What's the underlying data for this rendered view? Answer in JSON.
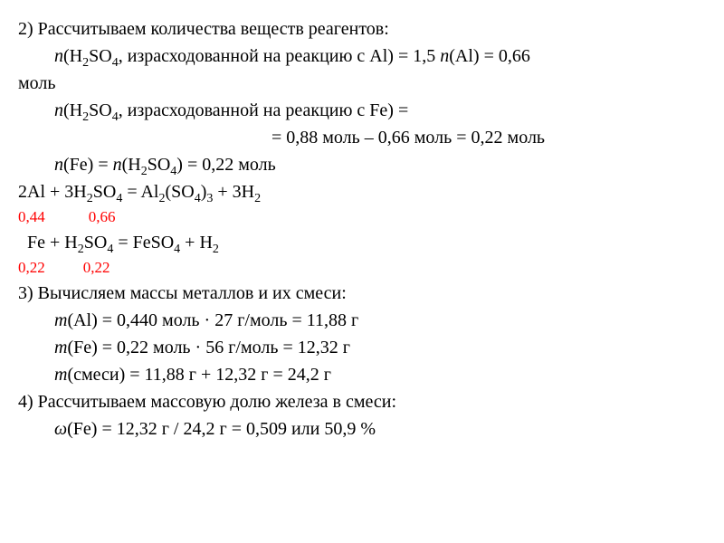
{
  "text_color": "#000000",
  "highlight_color": "#ff0000",
  "background": "#ffffff",
  "font_family": "Times New Roman",
  "base_font_size": 20,
  "highlight_font_size": 17,
  "step2": {
    "heading": "2) Рассчитываем количества веществ реагентов:",
    "line1_prefix": "n",
    "line1_a": "(H",
    "line1_b": "SO",
    "line1_c": ", израсходованной на реакцию с Al) = 1,5 ",
    "line1_n2": "n",
    "line1_d": "(Al) = 0,66",
    "line2": "моль",
    "line3_a": "(H",
    "line3_b": "SO",
    "line3_c": ", израсходованной на реакцию с Fe) =",
    "line4": "= 0,88 моль – 0,66 моль = 0,22 моль",
    "line5_a": "(Fe) = ",
    "line5_b": "(H",
    "line5_c": "SO",
    "line5_d": ") = 0,22 моль",
    "eq1_a": "2Al + 3H",
    "eq1_b": "SO",
    "eq1_c": " = Al",
    "eq1_d": "(SO",
    "eq1_e": ")",
    "eq1_f": " + 3H",
    "coef1_a": "0,44",
    "coef1_b": "0,66",
    "eq2_a": "  Fe + H",
    "eq2_b": "SO",
    "eq2_c": " = FeSO",
    "eq2_d": " + H",
    "coef2_a": "0,22",
    "coef2_b": "0,22"
  },
  "step3": {
    "heading": "3) Вычисляем массы металлов и их смеси:",
    "m": "m",
    "line1": "(Al) = 0,440 моль · 27 г/моль = 11,88 г",
    "line2": "(Fe) = 0,22 моль · 56 г/моль = 12,32 г",
    "line3": "(смеси) = 11,88 г + 12,32 г = 24,2 г"
  },
  "step4": {
    "heading": "4) Рассчитываем массовую долю железа в смеси:",
    "omega": "ω",
    "line1": "(Fe) = 12,32 г / 24,2 г = 0,509 или 50,9 %"
  },
  "sub": {
    "s2": "2",
    "s3": "3",
    "s4": "4"
  }
}
